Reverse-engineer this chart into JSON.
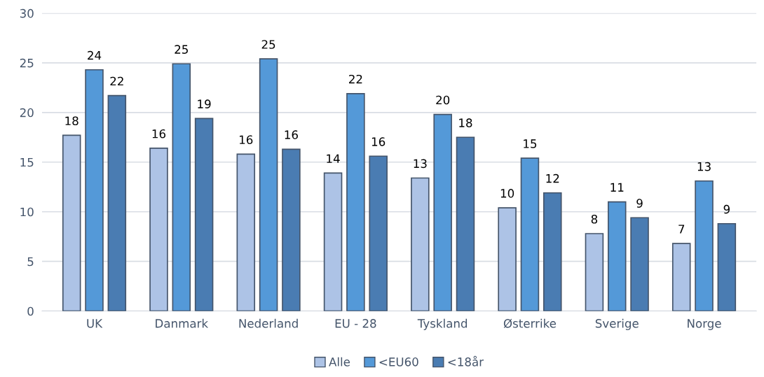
{
  "chart_data": {
    "type": "bar",
    "categories": [
      "UK",
      "Danmark",
      "Nederland",
      "EU - 28",
      "Tyskland",
      "Østerrike",
      "Sverige",
      "Norge"
    ],
    "series": [
      {
        "name": "Alle",
        "color": "#adc3e6",
        "values": [
          17.7,
          16.4,
          15.8,
          13.9,
          13.4,
          10.4,
          7.8,
          6.8
        ],
        "value_labels": [
          "18",
          "16",
          "16",
          "14",
          "13",
          "10",
          "8",
          "7"
        ]
      },
      {
        "name": "<EU60",
        "color": "#5499d8",
        "values": [
          24.3,
          24.9,
          25.4,
          21.9,
          19.8,
          15.4,
          11.0,
          13.1
        ],
        "value_labels": [
          "24",
          "25",
          "25",
          "22",
          "20",
          "15",
          "11",
          "13"
        ]
      },
      {
        "name": "<18år",
        "color": "#4a7cb2",
        "values": [
          21.7,
          19.4,
          16.3,
          15.6,
          17.5,
          11.9,
          9.4,
          8.8
        ],
        "value_labels": [
          "22",
          "19",
          "16",
          "16",
          "18",
          "12",
          "9",
          "9"
        ]
      }
    ],
    "ylim": [
      0,
      30
    ],
    "yticks": [
      0,
      5,
      10,
      15,
      20,
      25,
      30
    ],
    "grid": "y",
    "legend": "bottom"
  }
}
